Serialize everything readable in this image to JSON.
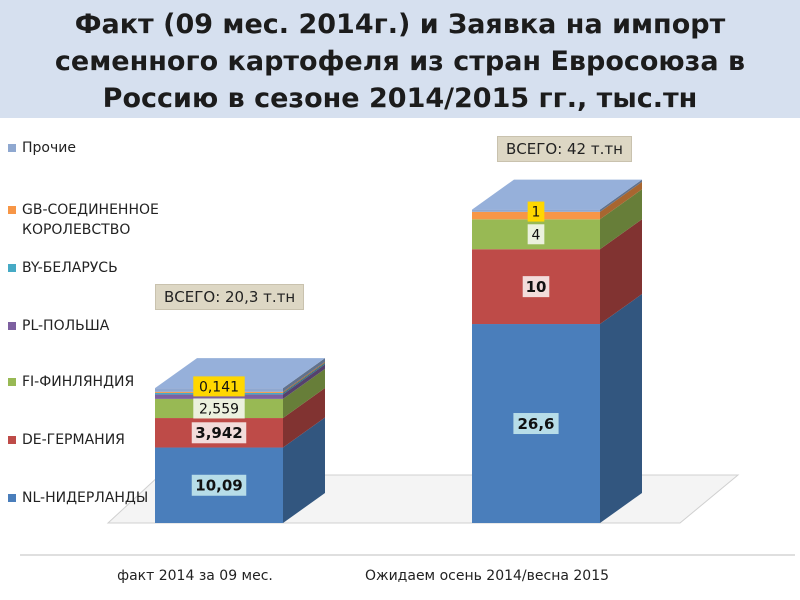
{
  "title": "Факт (09 мес. 2014г.) и Заявка на импорт семенного картофеля из стран Евросоюза в Россию в сезоне 2014/2015 гг., тыс.тн",
  "title_lines": [
    "Факт (09 мес. 2014г.) и Заявка на импорт",
    "семенного картофеля из стран Евросоюза в",
    "Россию в сезоне 2014/2015 гг., тыс.тн"
  ],
  "totals": [
    "ВСЕГО: 20,3 т.тн",
    "ВСЕГО: 42 т.тн"
  ],
  "chart_data": {
    "type": "bar",
    "stacked": true,
    "three_d": true,
    "title": "Факт (09 мес. 2014г.) и Заявка на импорт семенного картофеля из стран Евросоюза в Россию в сезоне 2014/2015 гг., тыс.тн",
    "categories": [
      "факт 2014  за 09 мес.",
      "Ожидаем осень 2014/весна 2015"
    ],
    "legend_position": "left",
    "series": [
      {
        "name": "NL-НИДЕРЛАНДЫ",
        "color": "#4a7ebb",
        "values": [
          10.09,
          26.6
        ],
        "labels": [
          "10,09",
          "26,6"
        ]
      },
      {
        "name": "DE-ГЕРМАНИЯ",
        "color": "#be4b48",
        "values": [
          3.942,
          10
        ],
        "labels": [
          "3,942",
          "10"
        ]
      },
      {
        "name": "FI-ФИНЛЯНДИЯ",
        "color": "#98b954",
        "values": [
          2.559,
          4
        ],
        "labels": [
          "2,559",
          "4"
        ]
      },
      {
        "name": "PL-ПОЛЬША",
        "color": "#7d60a0",
        "values": [
          0.6,
          0
        ],
        "labels": [
          "",
          ""
        ]
      },
      {
        "name": "BY-БЕЛАРУСЬ",
        "color": "#46aac5",
        "values": [
          0.2,
          0
        ],
        "labels": [
          "",
          ""
        ]
      },
      {
        "name": "GB-СОЕДИНЕННОЕ КОРОЛЕВСТВО",
        "color": "#f79646",
        "values": [
          0.141,
          1
        ],
        "labels": [
          "0,141",
          "1"
        ]
      },
      {
        "name": "Прочие",
        "color": "#8fa8d0",
        "values": [
          0.5,
          0.3
        ],
        "labels": [
          "",
          ""
        ]
      }
    ]
  }
}
